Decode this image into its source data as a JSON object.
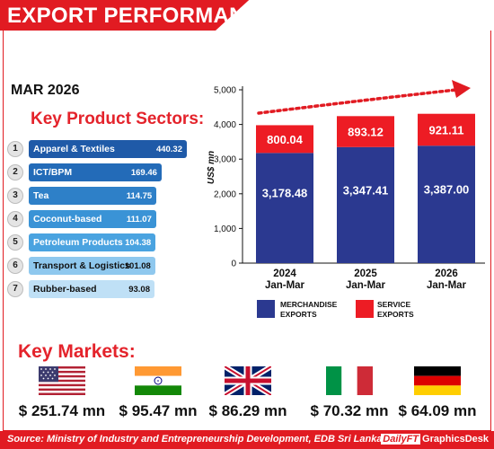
{
  "header": {
    "title": "EXPORT PERFORMANCE"
  },
  "period": "MAR 2026",
  "sectors": {
    "title": "Key Product Sectors:",
    "items": [
      {
        "rank": "1",
        "name": "Apparel & Textiles",
        "value": "440.32",
        "color": "#1f5aa8",
        "text_color": "#ffffff"
      },
      {
        "rank": "2",
        "name": "ICT/BPM",
        "value": "169.46",
        "color": "#236bb8",
        "text_color": "#ffffff"
      },
      {
        "rank": "3",
        "name": "Tea",
        "value": "114.75",
        "color": "#2e80c8",
        "text_color": "#ffffff"
      },
      {
        "rank": "4",
        "name": "Coconut-based",
        "value": "111.07",
        "color": "#3a93d6",
        "text_color": "#ffffff"
      },
      {
        "rank": "5",
        "name": "Petroleum Products",
        "value": "104.38",
        "color": "#4aa3e0",
        "text_color": "#ffffff"
      },
      {
        "rank": "6",
        "name": "Transport & Logistics",
        "value": "101.08",
        "color": "#8fc8ee",
        "text_color": "#111111"
      },
      {
        "rank": "7",
        "name": "Rubber-based",
        "value": "93.08",
        "color": "#bfe0f6",
        "text_color": "#111111"
      }
    ]
  },
  "markets": {
    "title": "Key Markets:",
    "items": [
      {
        "flag": "usa-flag",
        "value": "$ 251.74 mn"
      },
      {
        "flag": "india-flag",
        "value": "$ 95.47 mn"
      },
      {
        "flag": "uk-flag",
        "value": "$ 86.29 mn"
      },
      {
        "flag": "italy-flag",
        "value": "$ 70.32 mn"
      },
      {
        "flag": "germany-flag",
        "value": "$ 64.09 mn"
      }
    ]
  },
  "chart_data": {
    "type": "bar",
    "stacked": true,
    "categories": [
      {
        "line1": "2024",
        "line2": "Jan-Mar"
      },
      {
        "line1": "2025",
        "line2": "Jan-Mar"
      },
      {
        "line1": "2026",
        "line2": "Jan-Mar"
      }
    ],
    "series": [
      {
        "name": "MERCHANDISE EXPORTS",
        "legend_line1": "MERCHANDISE",
        "legend_line2": "EXPORTS",
        "color": "#2b3990",
        "values": [
          3178.48,
          3347.41,
          3387.0
        ],
        "labels": [
          "3,178.48",
          "3,347.41",
          "3,387.00"
        ]
      },
      {
        "name": "SERVICE EXPORTS",
        "legend_line1": "SERVICE",
        "legend_line2": "EXPORTS",
        "color": "#ed1c24",
        "values": [
          800.04,
          893.12,
          921.11
        ],
        "labels": [
          "800.04",
          "893.12",
          "921.11"
        ]
      }
    ],
    "ylabel": "US$ mn",
    "ylim": [
      0,
      5000
    ],
    "yticks": [
      0,
      1000,
      2000,
      3000,
      4000,
      5000
    ],
    "ytick_labels": [
      "0",
      "1,000",
      "2,000",
      "3,000",
      "4,000",
      "5,000"
    ],
    "trend_arrow": "rising dotted arrow",
    "accent_color": "#e11b22"
  },
  "footer": {
    "source": "Source: Ministry of Industry and Entrepreneurship Development, EDB Sri Lanka",
    "brand_daily": "DailyFT",
    "brand_desk": "GraphicsDesk"
  }
}
